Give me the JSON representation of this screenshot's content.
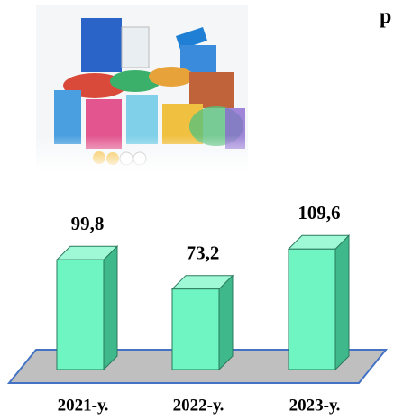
{
  "chart_data": {
    "type": "bar3d",
    "title": "р",
    "categories": [
      "2021-у.",
      "2022-у.",
      "2023-у."
    ],
    "values": [
      99.8,
      73.2,
      109.6
    ],
    "value_labels": [
      "99,8",
      "73,2",
      "109,6"
    ],
    "color": "#6ff5c2"
  }
}
